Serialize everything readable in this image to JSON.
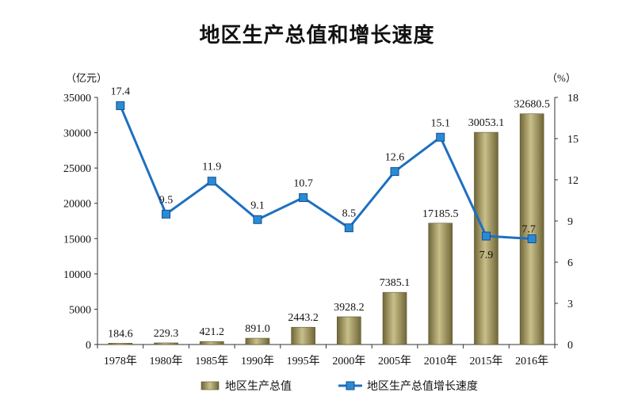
{
  "chart_data": {
    "type": "bar+line",
    "title": "地区生产总值和增长速度",
    "categories": [
      "1978年",
      "1980年",
      "1985年",
      "1990年",
      "1995年",
      "2000年",
      "2005年",
      "2010年",
      "2015年",
      "2016年"
    ],
    "series": [
      {
        "name": "地区生产总值",
        "type": "bar",
        "axis": "left",
        "values": [
          184.6,
          229.3,
          421.2,
          891.0,
          2443.2,
          3928.2,
          7385.1,
          17185.5,
          30053.1,
          32680.5
        ],
        "labels": [
          "184.6",
          "229.3",
          "421.2",
          "891.0",
          "2443.2",
          "3928.2",
          "7385.1",
          "17185.5",
          "30053.1",
          "32680.5"
        ]
      },
      {
        "name": "地区生产总值增长速度",
        "type": "line",
        "axis": "right",
        "values": [
          17.4,
          9.5,
          11.9,
          9.1,
          10.7,
          8.5,
          12.6,
          15.1,
          7.9,
          7.7
        ],
        "labels": [
          "17.4",
          "9.5",
          "11.9",
          "9.1",
          "10.7",
          "8.5",
          "12.6",
          "15.1",
          "7.9",
          "7.7"
        ]
      }
    ],
    "y_left": {
      "unit": "（亿元）",
      "ylim": [
        0,
        35000
      ],
      "ticks": [
        "0",
        "5000",
        "10000",
        "15000",
        "20000",
        "25000",
        "30000",
        "35000"
      ]
    },
    "y_right": {
      "unit": "（%）",
      "ylim": [
        0,
        18
      ],
      "ticks": [
        "0",
        "3",
        "6",
        "9",
        "12",
        "15",
        "18"
      ]
    },
    "grid": false,
    "legend_position": "bottom",
    "colors": {
      "bar": "#9a8f55",
      "bar_light": "#c9bf8a",
      "bar_dark": "#6f6638",
      "line": "#1f6fc0",
      "marker": "#2b8ad6"
    }
  }
}
